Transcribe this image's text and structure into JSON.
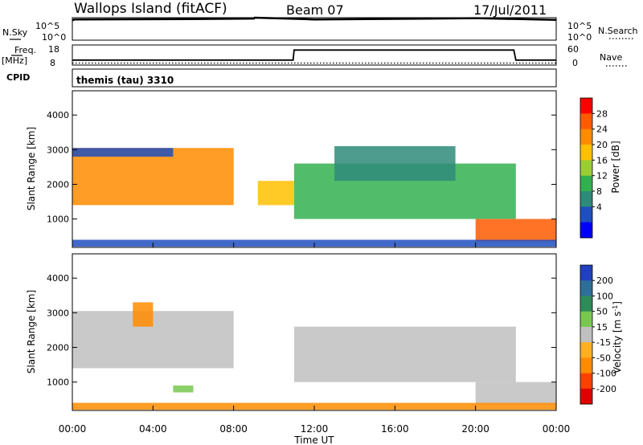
{
  "header": {
    "station": "Wallops Island (fitACF)",
    "beam": "Beam 07",
    "date": "17/Jul/2011"
  },
  "noise_panel": {
    "left_label": "N.Sky",
    "left_ticks": [
      "10^5",
      "10^0"
    ],
    "right_ticks": [
      "10^5",
      "10^0"
    ],
    "right_label": "N.Search"
  },
  "freq_panel": {
    "left_label_1": "Freq.",
    "left_label_2": "[MHz]",
    "left_ticks": [
      "18",
      "8"
    ],
    "right_ticks": [
      "60",
      "0"
    ],
    "right_label": "Nave"
  },
  "cpid": {
    "label": "CPID",
    "value": "themis (tau) 3310"
  },
  "x_axis": {
    "label": "Time UT",
    "ticks": [
      "00:00",
      "04:00",
      "08:00",
      "12:00",
      "16:00",
      "20:00",
      "00:00"
    ]
  },
  "power_colorbar": {
    "label": "Power [dB]",
    "ticks": [
      "28",
      "24",
      "20",
      "16",
      "12",
      "8",
      "4"
    ],
    "colors": [
      "#ff0000",
      "#ff5a00",
      "#ff8c00",
      "#ffc000",
      "#9acd32",
      "#32b050",
      "#2e8b7a",
      "#1f4fbf",
      "#0000ff"
    ]
  },
  "velocity_colorbar": {
    "label_main": "Velocity [m s",
    "label_sup": "-1",
    "label_end": "]",
    "ticks": [
      "200",
      "100",
      "50",
      "15",
      "-15",
      "-50",
      "-100",
      "-200"
    ],
    "colors": [
      "#2040c0",
      "#2e6e9a",
      "#2e8b57",
      "#78c850",
      "#c0c0c0",
      "#ffb020",
      "#ff8c00",
      "#ff4000",
      "#e00000"
    ]
  },
  "chart_data": [
    {
      "type": "line",
      "panel": "noise",
      "x_unit": "hours UT",
      "series": [
        {
          "name": "N.Sky",
          "x": [
            0,
            0.1,
            6,
            9,
            9.05,
            12,
            18,
            20,
            24
          ],
          "y": [
            4.4,
            4.6,
            4.7,
            4.8,
            5.0,
            4.6,
            4.8,
            4.9,
            4.5
          ]
        }
      ],
      "ylim": [
        0,
        5
      ],
      "y_scale": "log10"
    },
    {
      "type": "line",
      "panel": "frequency",
      "x_unit": "hours UT",
      "series": [
        {
          "name": "Freq.",
          "x": [
            0,
            10.95,
            11.0,
            21.9,
            22.0,
            24
          ],
          "y": [
            10.5,
            10.5,
            15.5,
            15.5,
            10.5,
            10.5
          ]
        },
        {
          "name": "Nave",
          "x": [
            0,
            24
          ],
          "y": [
            9,
            9
          ]
        }
      ],
      "ylim": [
        8,
        18
      ]
    },
    {
      "type": "heatmap",
      "panel": "power",
      "x_unit": "hours UT",
      "xlim": [
        0,
        24
      ],
      "ylabel": "Slant Range [km]",
      "ylim": [
        180,
        4700
      ],
      "yticks": [
        1000,
        2000,
        3000,
        4000
      ],
      "colorbar": "Power [dB]",
      "features": [
        {
          "start": 0,
          "end": 8,
          "range_start": 1400,
          "range_end": 3050,
          "power_db": 24
        },
        {
          "start": 0,
          "end": 5,
          "range_start": 2800,
          "range_end": 3050,
          "power_db": 8
        },
        {
          "start": 9.2,
          "end": 11.0,
          "range_start": 1400,
          "range_end": 2100,
          "power_db": 20
        },
        {
          "start": 11.0,
          "end": 22,
          "range_start": 1000,
          "range_end": 2600,
          "power_db": 12
        },
        {
          "start": 13,
          "end": 19,
          "range_start": 2100,
          "range_end": 3100,
          "power_db": 10
        },
        {
          "start": 20,
          "end": 24,
          "range_start": 350,
          "range_end": 1000,
          "power_db": 28
        },
        {
          "start": 0,
          "end": 24,
          "range_start": 200,
          "range_end": 400,
          "power_db": 6
        }
      ]
    },
    {
      "type": "heatmap",
      "panel": "velocity",
      "x_unit": "hours UT",
      "xlim": [
        0,
        24
      ],
      "ylabel": "Slant Range [km]",
      "ylim": [
        180,
        4700
      ],
      "yticks": [
        1000,
        2000,
        3000,
        4000
      ],
      "colorbar": "Velocity [m s-1]",
      "features": [
        {
          "start": 0,
          "end": 8,
          "range_start": 1400,
          "range_end": 3050,
          "velocity": 0
        },
        {
          "start": 11.0,
          "end": 22,
          "range_start": 1000,
          "range_end": 2600,
          "velocity": 0
        },
        {
          "start": 20,
          "end": 24,
          "range_start": 350,
          "range_end": 1000,
          "velocity": 0
        },
        {
          "start": 0,
          "end": 24,
          "range_start": 200,
          "range_end": 400,
          "velocity": -80
        },
        {
          "start": 3,
          "end": 4,
          "range_start": 2600,
          "range_end": 3300,
          "velocity": -60
        },
        {
          "start": 5,
          "end": 6,
          "range_start": 700,
          "range_end": 900,
          "velocity": 30
        }
      ]
    }
  ]
}
